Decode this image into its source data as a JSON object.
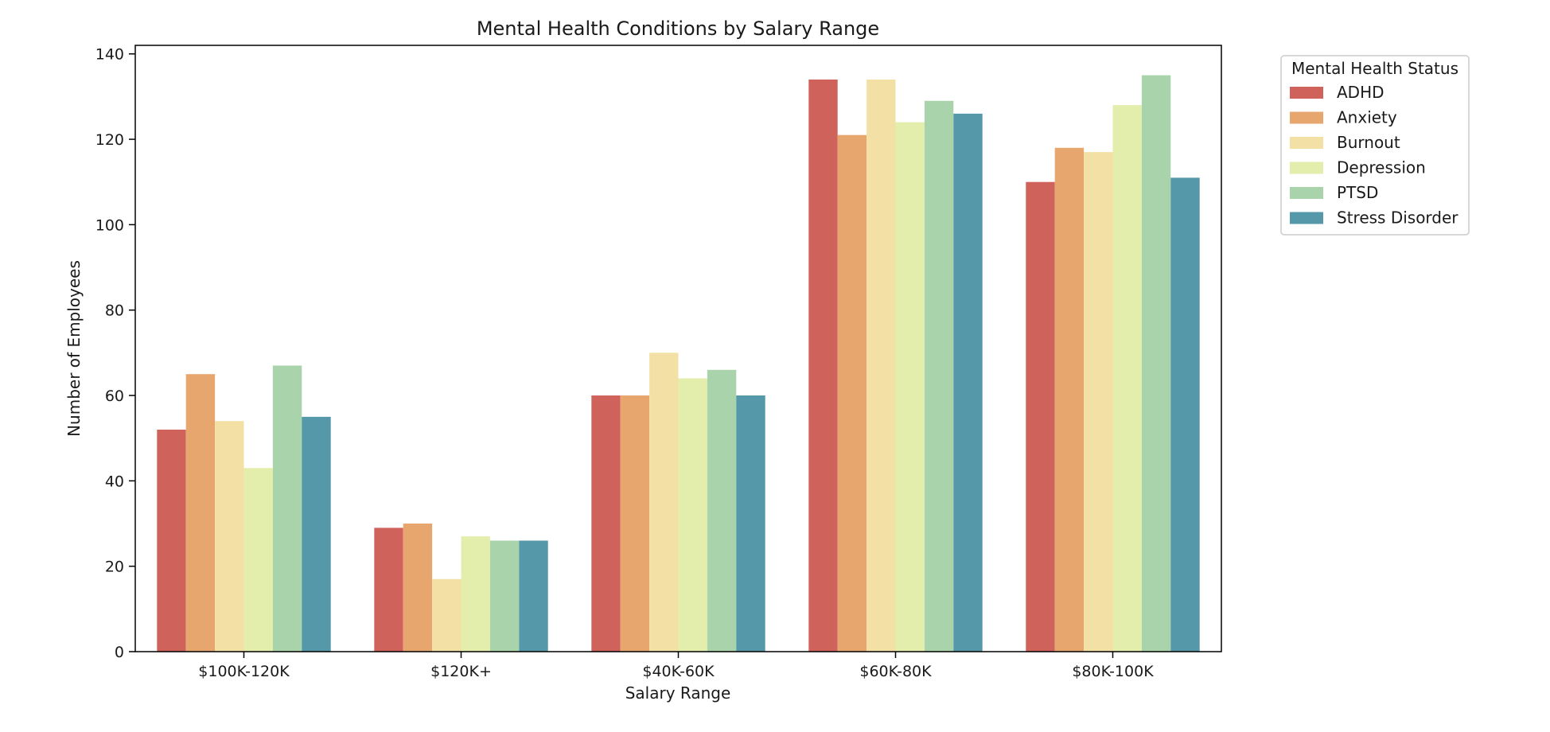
{
  "chart_data": {
    "type": "bar",
    "title": "Mental Health Conditions by Salary Range",
    "xlabel": "Salary Range",
    "ylabel": "Number of Employees",
    "categories": [
      "$100K-120K",
      "$120K+",
      "$40K-60K",
      "$60K-80K",
      "$80K-100K"
    ],
    "series": [
      {
        "name": "ADHD",
        "color": "#d0625c",
        "values": [
          52,
          29,
          60,
          134,
          110
        ]
      },
      {
        "name": "Anxiety",
        "color": "#e8a66f",
        "values": [
          65,
          30,
          60,
          121,
          118
        ]
      },
      {
        "name": "Burnout",
        "color": "#f2e0a5",
        "values": [
          54,
          17,
          70,
          134,
          117
        ]
      },
      {
        "name": "Depression",
        "color": "#e3eeac",
        "values": [
          43,
          27,
          64,
          124,
          128
        ]
      },
      {
        "name": "PTSD",
        "color": "#a9d3aa",
        "values": [
          67,
          26,
          66,
          129,
          135
        ]
      },
      {
        "name": "Stress Disorder",
        "color": "#5598a9",
        "values": [
          55,
          26,
          60,
          126,
          111
        ]
      }
    ],
    "ylim": [
      0,
      142
    ],
    "yticks": [
      0,
      20,
      40,
      60,
      80,
      100,
      120,
      140
    ],
    "legend": {
      "title": "Mental Health Status",
      "placement": "outside-top-right"
    },
    "grid": false
  }
}
